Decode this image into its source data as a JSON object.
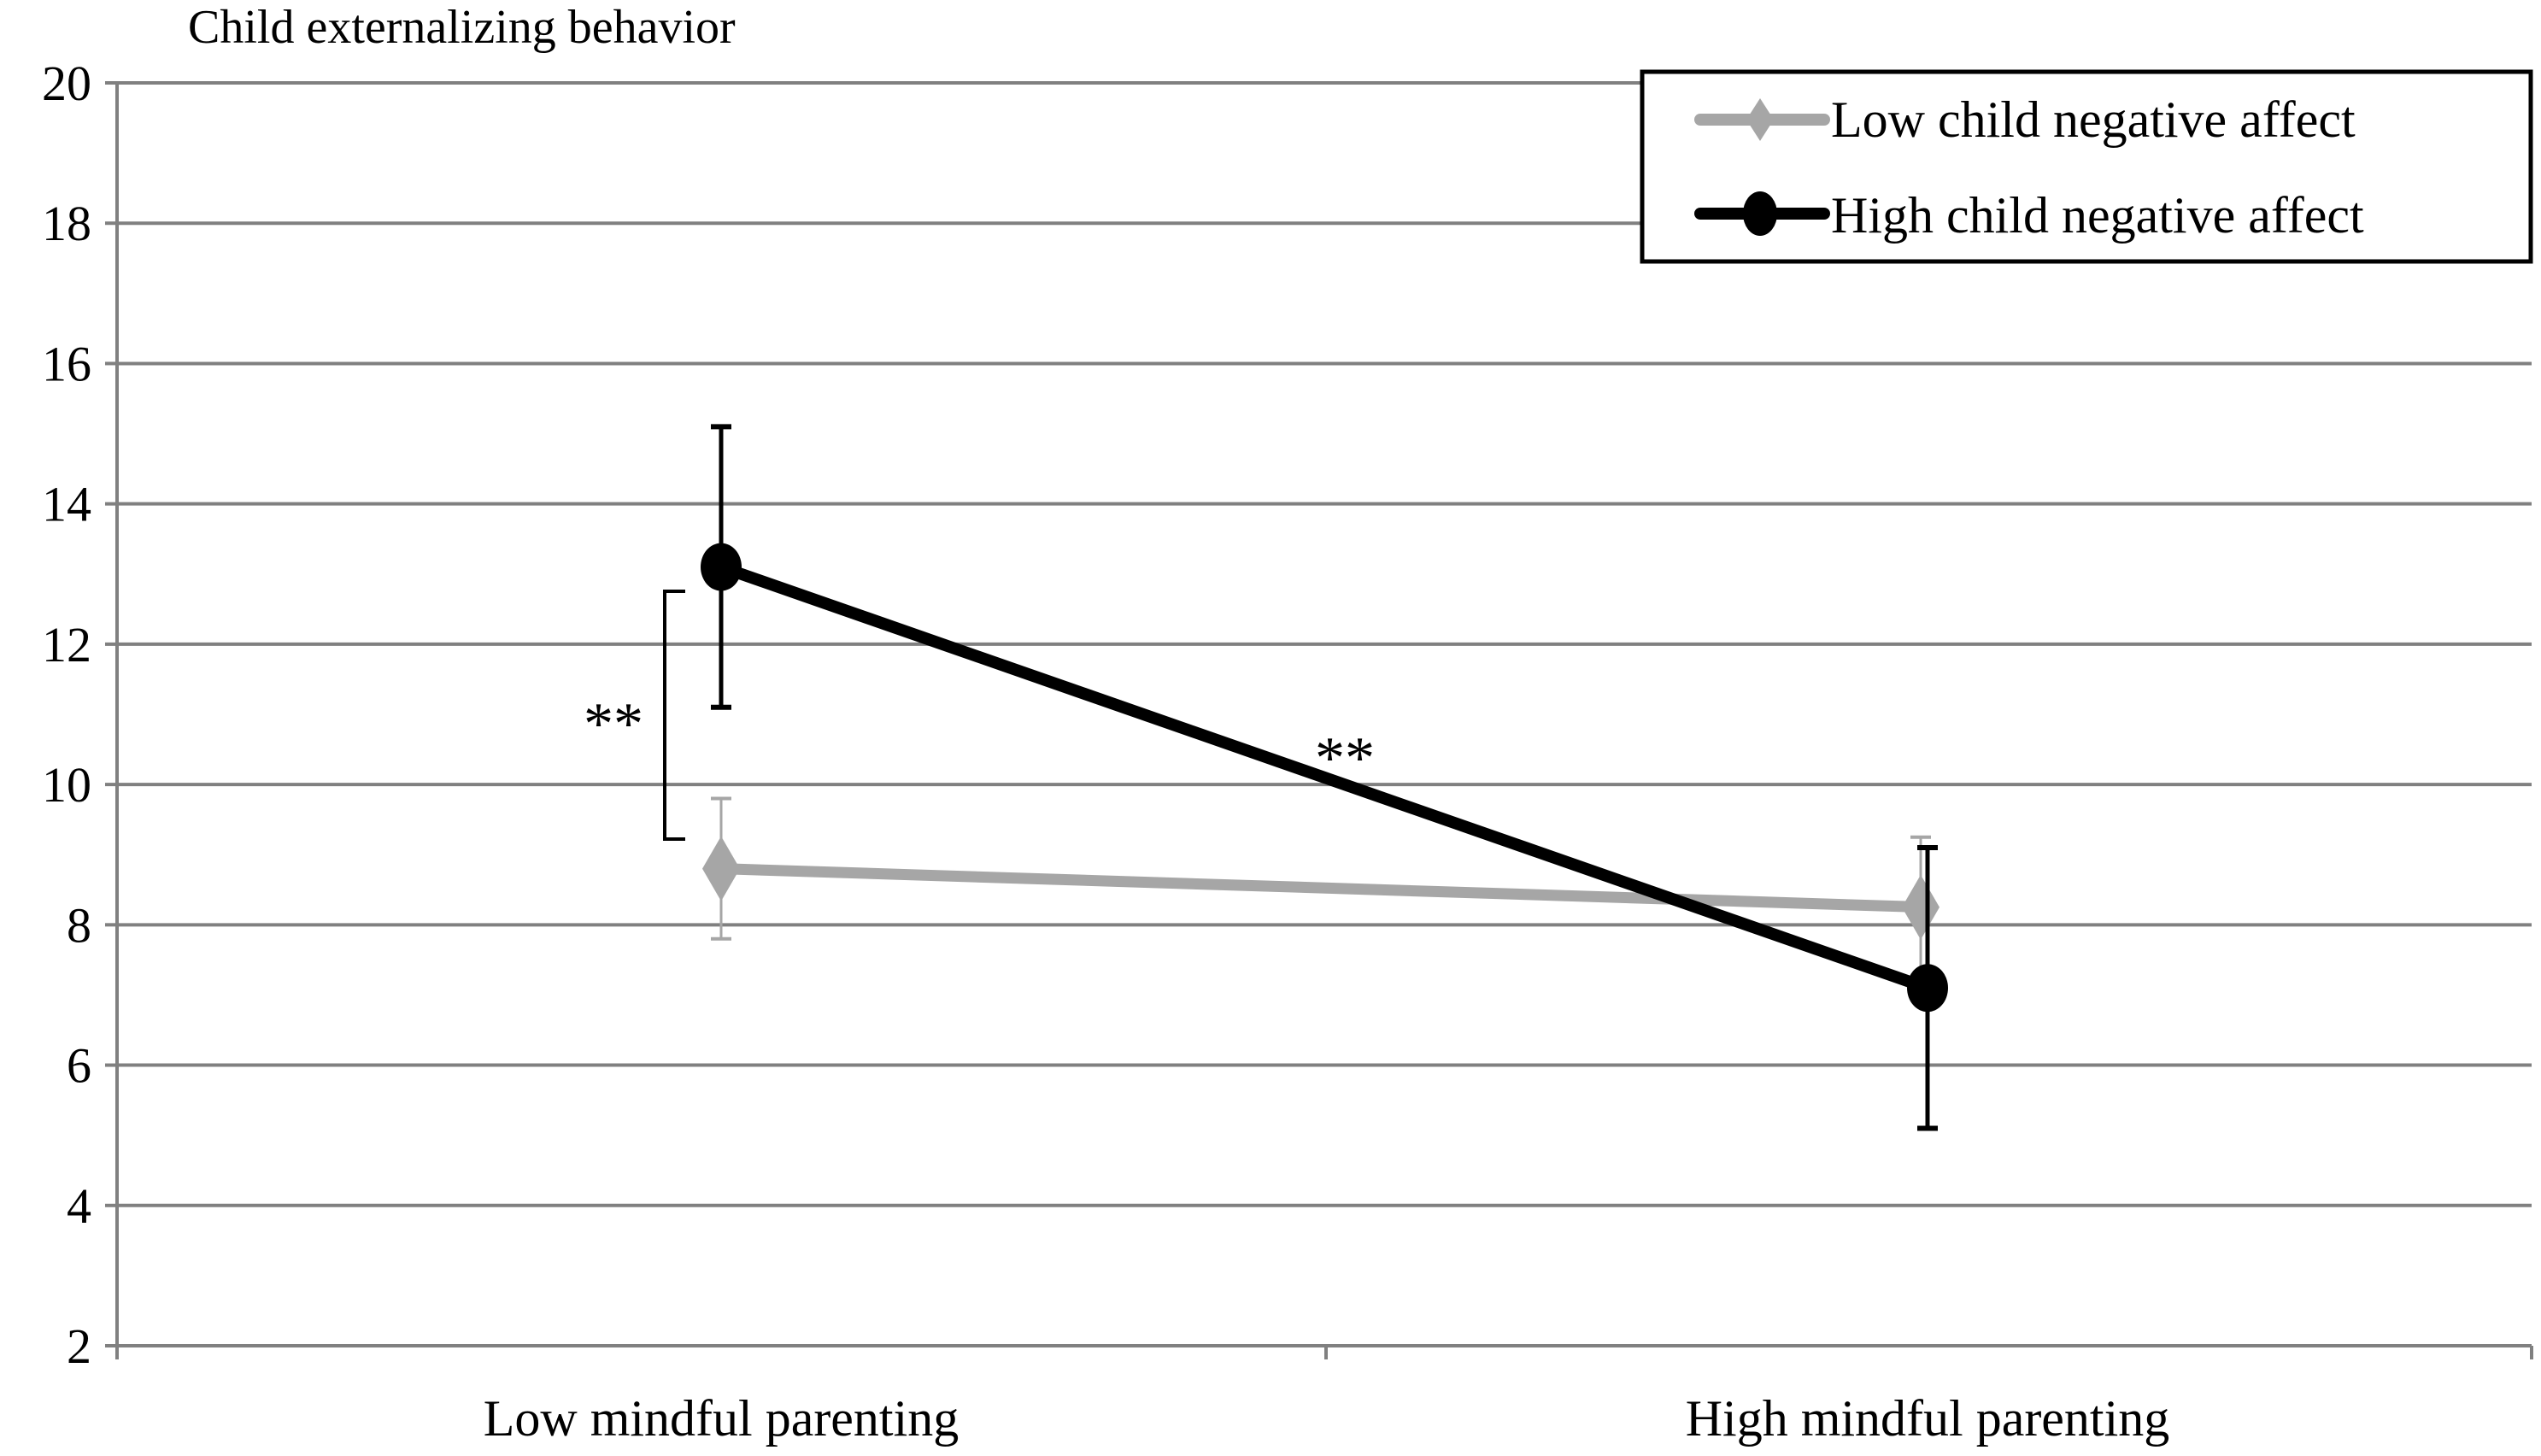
{
  "chart_data": {
    "type": "line",
    "title": "Child externalizing behavior",
    "xlabel": "",
    "ylabel": "",
    "categories": [
      "Low mindful parenting",
      "High mindful parenting"
    ],
    "ylim": [
      2,
      20
    ],
    "yticks": [
      2,
      4,
      6,
      8,
      10,
      12,
      14,
      16,
      18,
      20
    ],
    "grid": true,
    "legend_position": "top-right",
    "series": [
      {
        "name": "Low child negative affect",
        "values": [
          8.8,
          8.25
        ],
        "error": [
          1.0,
          1.0
        ],
        "color": "#a6a6a6",
        "marker": "diamond"
      },
      {
        "name": "High child negative affect",
        "values": [
          13.1,
          7.1
        ],
        "error": [
          2.0,
          2.0
        ],
        "color": "#000000",
        "marker": "circle"
      }
    ],
    "annotations": [
      {
        "text": "**",
        "meaning": "bracket between groups at Low mindful parenting"
      },
      {
        "text": "**",
        "meaning": "on High child negative affect slope"
      }
    ]
  }
}
